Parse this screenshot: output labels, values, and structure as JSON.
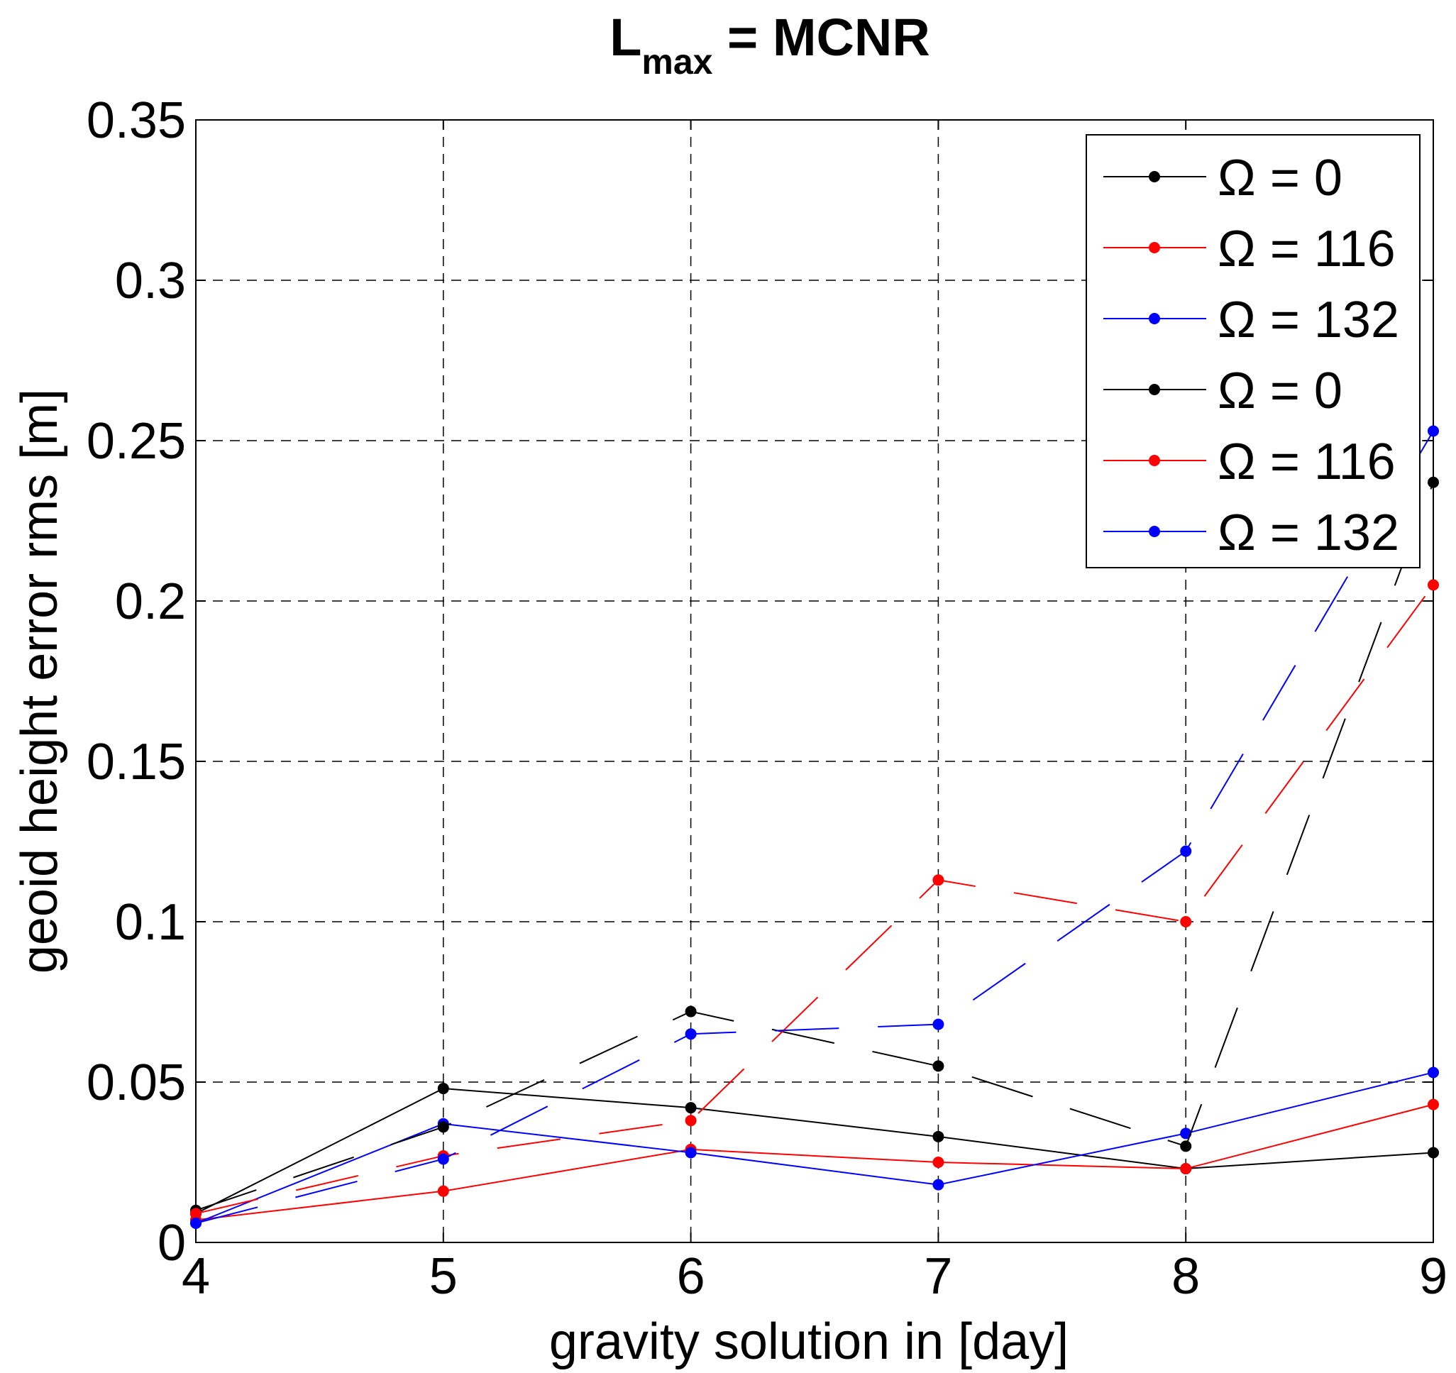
{
  "chart_data": {
    "type": "line",
    "title_main": "L",
    "title_sub": "max",
    "title_rest": " = MCNR",
    "xlabel": "gravity solution in [day]",
    "ylabel": "geoid height error rms [m]",
    "xlim": [
      4,
      9
    ],
    "ylim": [
      0,
      0.35
    ],
    "xticks": [
      4,
      5,
      6,
      7,
      8,
      9
    ],
    "xtick_labels": [
      "4",
      "5",
      "6",
      "7",
      "8",
      "9"
    ],
    "yticks": [
      0,
      0.05,
      0.1,
      0.15,
      0.2,
      0.25,
      0.3,
      0.35
    ],
    "ytick_labels": [
      "0",
      "0.05",
      "0.1",
      "0.15",
      "0.2",
      "0.25",
      "0.3",
      "0.35"
    ],
    "grid": true,
    "legend_position": "top-right",
    "x": [
      4,
      5,
      6,
      7,
      8,
      9
    ],
    "series": [
      {
        "name": "Ω = 0",
        "color": "#000000",
        "style": "solid",
        "values": [
          0.009,
          0.048,
          0.042,
          0.033,
          0.023,
          0.028
        ]
      },
      {
        "name": "Ω = 116",
        "color": "#ff0000",
        "style": "solid",
        "values": [
          0.007,
          0.016,
          0.029,
          0.025,
          0.023,
          0.043
        ]
      },
      {
        "name": "Ω = 132",
        "color": "#0000ff",
        "style": "solid",
        "values": [
          0.006,
          0.037,
          0.028,
          0.018,
          0.034,
          0.053
        ]
      },
      {
        "name": "Ω = 0",
        "color": "#000000",
        "style": "dashed",
        "values": [
          0.01,
          0.036,
          0.072,
          0.055,
          0.03,
          0.237
        ]
      },
      {
        "name": "Ω = 116",
        "color": "#ff0000",
        "style": "dashed",
        "values": [
          0.009,
          0.027,
          0.038,
          0.113,
          0.1,
          0.205
        ]
      },
      {
        "name": "Ω = 132",
        "color": "#0000ff",
        "style": "dashed",
        "values": [
          0.006,
          0.026,
          0.065,
          0.068,
          0.122,
          0.253
        ]
      }
    ]
  }
}
